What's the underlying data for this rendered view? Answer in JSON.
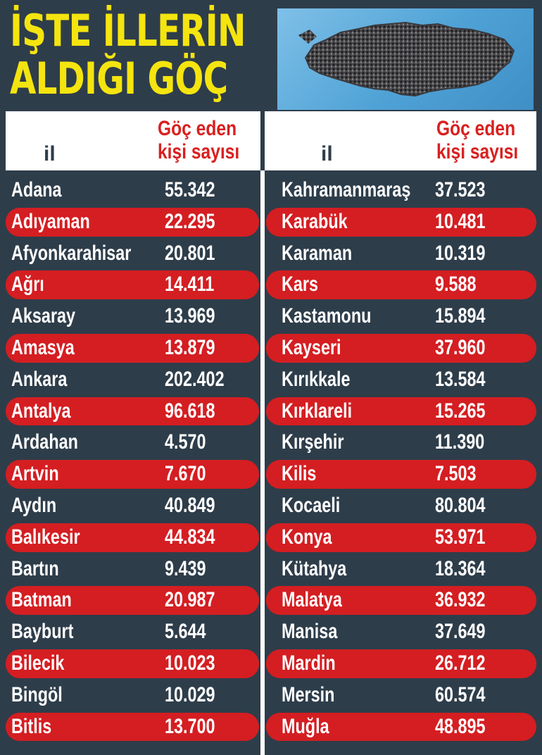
{
  "title": {
    "line1": "İŞTE İLLERİN",
    "line2": "ALDIĞI GÖÇ"
  },
  "photo": {
    "subject": "turkey-map-crowd-image"
  },
  "colors": {
    "background": "#2e3d4a",
    "accent_red": "#d41e22",
    "title_yellow": "#f4e40f",
    "header_white": "#ffffff"
  },
  "columns": {
    "il_label": "il",
    "count_label_line1": "Göç eden",
    "count_label_line2": "kişi sayısı"
  },
  "left_rows": [
    {
      "il": "Adana",
      "count": "55.342"
    },
    {
      "il": "Adıyaman",
      "count": "22.295"
    },
    {
      "il": "Afyonkarahisar",
      "count": "20.801"
    },
    {
      "il": "Ağrı",
      "count": "14.411"
    },
    {
      "il": "Aksaray",
      "count": "13.969"
    },
    {
      "il": "Amasya",
      "count": "13.879"
    },
    {
      "il": "Ankara",
      "count": "202.402"
    },
    {
      "il": "Antalya",
      "count": "96.618"
    },
    {
      "il": "Ardahan",
      "count": "4.570"
    },
    {
      "il": "Artvin",
      "count": "7.670"
    },
    {
      "il": "Aydın",
      "count": "40.849"
    },
    {
      "il": "Balıkesir",
      "count": "44.834"
    },
    {
      "il": "Bartın",
      "count": "9.439"
    },
    {
      "il": "Batman",
      "count": "20.987"
    },
    {
      "il": "Bayburt",
      "count": "5.644"
    },
    {
      "il": "Bilecik",
      "count": "10.023"
    },
    {
      "il": "Bingöl",
      "count": "10.029"
    },
    {
      "il": "Bitlis",
      "count": "13.700"
    }
  ],
  "right_rows": [
    {
      "il": "Kahramanmaraş",
      "count": "37.523"
    },
    {
      "il": "Karabük",
      "count": "10.481"
    },
    {
      "il": "Karaman",
      "count": "10.319"
    },
    {
      "il": "Kars",
      "count": "9.588"
    },
    {
      "il": "Kastamonu",
      "count": "15.894"
    },
    {
      "il": "Kayseri",
      "count": "37.960"
    },
    {
      "il": "Kırıkkale",
      "count": "13.584"
    },
    {
      "il": "Kırklareli",
      "count": "15.265"
    },
    {
      "il": "Kırşehir",
      "count": "11.390"
    },
    {
      "il": "Kilis",
      "count": "7.503"
    },
    {
      "il": "Kocaeli",
      "count": "80.804"
    },
    {
      "il": "Konya",
      "count": "53.971"
    },
    {
      "il": "Kütahya",
      "count": "18.364"
    },
    {
      "il": "Malatya",
      "count": "36.932"
    },
    {
      "il": "Manisa",
      "count": "37.649"
    },
    {
      "il": "Mardin",
      "count": "26.712"
    },
    {
      "il": "Mersin",
      "count": "60.574"
    },
    {
      "il": "Muğla",
      "count": "48.895"
    }
  ]
}
